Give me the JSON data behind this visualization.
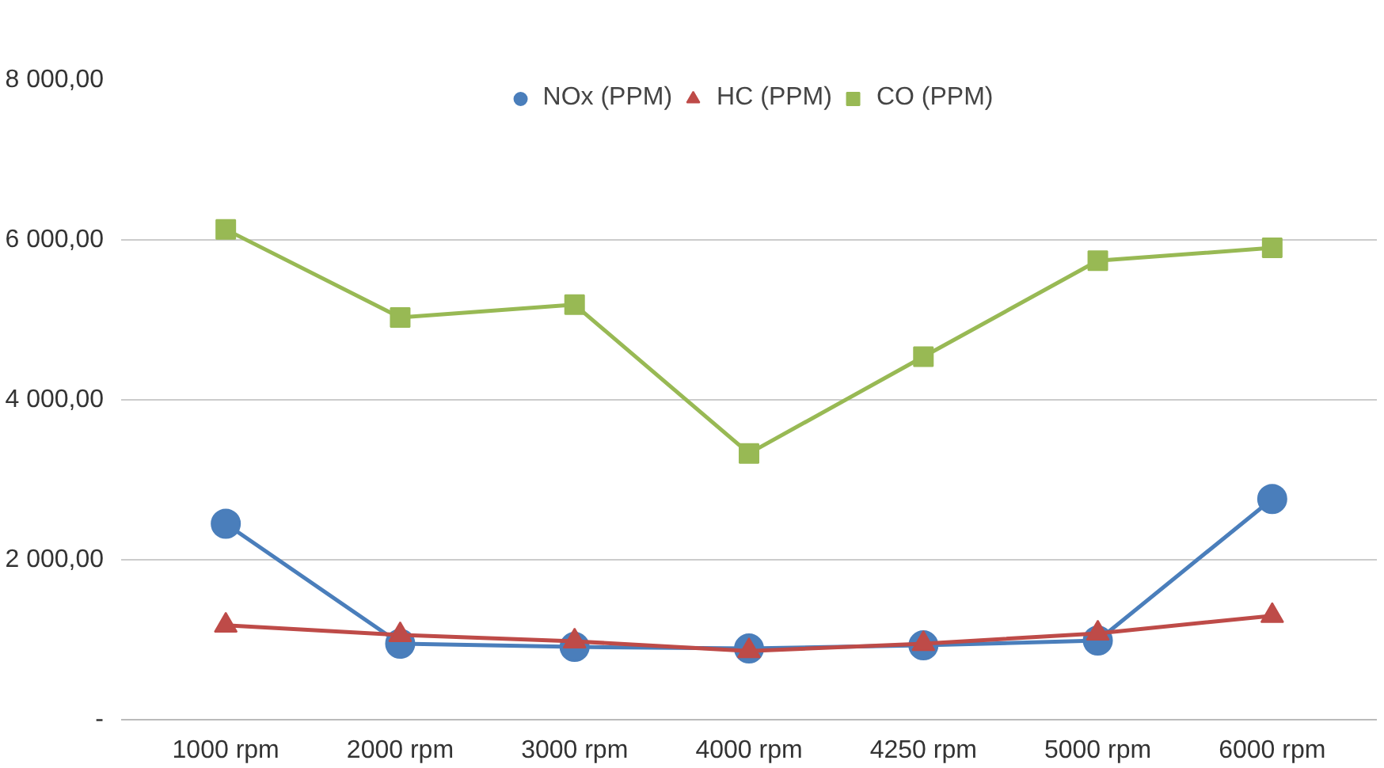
{
  "chart_data": {
    "type": "line",
    "categories": [
      "1000 rpm",
      "2000 rpm",
      "3000 rpm",
      "4000 rpm",
      "4250 rpm",
      "5000 rpm",
      "6000 rpm"
    ],
    "series": [
      {
        "name": "NOx (PPM)",
        "color": "#4a7ebb",
        "marker": "circle",
        "values": [
          2450,
          950,
          910,
          890,
          930,
          990,
          2760
        ]
      },
      {
        "name": "HC (PPM)",
        "color": "#be4b48",
        "marker": "triangle",
        "values": [
          1180,
          1060,
          980,
          860,
          950,
          1080,
          1300
        ]
      },
      {
        "name": "CO (PPM)",
        "color": "#98b954",
        "marker": "square",
        "values": [
          6130,
          5030,
          5190,
          3330,
          4540,
          5740,
          5900
        ]
      }
    ],
    "ylim": [
      0,
      8000
    ],
    "yticks": [
      {
        "value": 0,
        "label": "-"
      },
      {
        "value": 2000,
        "label": "2 000,00"
      },
      {
        "value": 4000,
        "label": "4 000,00"
      },
      {
        "value": 6000,
        "label": "6 000,00"
      },
      {
        "value": 8000,
        "label": "8 000,00"
      }
    ],
    "grid": "y",
    "legend": "top",
    "line_style": "solid"
  }
}
